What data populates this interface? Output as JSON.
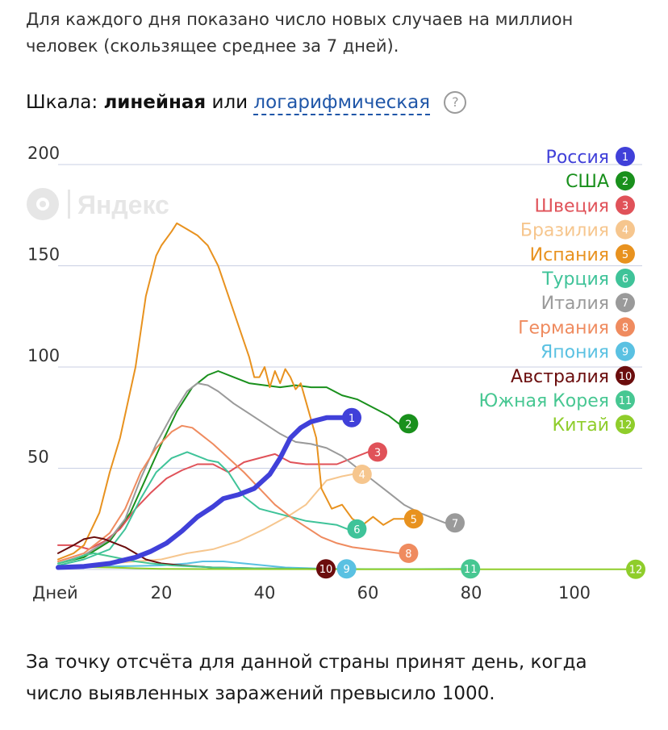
{
  "intro_text": "Для каждого дня показано число новых случаев на миллион человек (скользящее среднее за 7 дней).",
  "scale": {
    "label": "Шкала:",
    "linear": "линейная",
    "or": "или",
    "log": "логарифмическая",
    "help": "?"
  },
  "watermark": "Яндекс",
  "footer_text": "За точку отсчёта для данной страны принят день, когда число выявленных заражений превысило 1000.",
  "chart_data": {
    "type": "line",
    "xlabel": "Дней",
    "ylabel": "",
    "xlim": [
      0,
      113
    ],
    "ylim": [
      0,
      200
    ],
    "x_ticks": [
      20,
      40,
      60,
      80,
      100
    ],
    "y_ticks": [
      50,
      100,
      150,
      200
    ],
    "grid": true,
    "legend_position": "top-right",
    "series": [
      {
        "name": "Россия",
        "num": "1",
        "color": "#4040d9",
        "width": 6,
        "points": [
          [
            0,
            1
          ],
          [
            5,
            1.5
          ],
          [
            10,
            3
          ],
          [
            15,
            6
          ],
          [
            18,
            9
          ],
          [
            21,
            13
          ],
          [
            24,
            19
          ],
          [
            27,
            26
          ],
          [
            30,
            31
          ],
          [
            32,
            35
          ],
          [
            35,
            37
          ],
          [
            38,
            40
          ],
          [
            41,
            47
          ],
          [
            43,
            55
          ],
          [
            45,
            65
          ],
          [
            47,
            70
          ],
          [
            49,
            73
          ],
          [
            52,
            75
          ],
          [
            55,
            75
          ]
        ]
      },
      {
        "name": "США",
        "num": "2",
        "color": "#19901c",
        "width": 2,
        "points": [
          [
            0,
            3
          ],
          [
            5,
            6
          ],
          [
            10,
            14
          ],
          [
            14,
            28
          ],
          [
            17,
            45
          ],
          [
            20,
            62
          ],
          [
            23,
            78
          ],
          [
            26,
            90
          ],
          [
            29,
            96
          ],
          [
            31,
            98
          ],
          [
            34,
            95
          ],
          [
            37,
            92
          ],
          [
            40,
            91
          ],
          [
            43,
            90
          ],
          [
            46,
            91
          ],
          [
            49,
            90
          ],
          [
            52,
            90
          ],
          [
            55,
            86
          ],
          [
            58,
            84
          ],
          [
            61,
            80
          ],
          [
            64,
            76
          ],
          [
            66,
            72
          ]
        ]
      },
      {
        "name": "Швеция",
        "num": "3",
        "color": "#e05259",
        "width": 2,
        "points": [
          [
            0,
            12
          ],
          [
            3,
            12
          ],
          [
            6,
            10
          ],
          [
            9,
            14
          ],
          [
            12,
            20
          ],
          [
            15,
            30
          ],
          [
            18,
            38
          ],
          [
            21,
            45
          ],
          [
            24,
            49
          ],
          [
            27,
            52
          ],
          [
            30,
            52
          ],
          [
            33,
            48
          ],
          [
            36,
            53
          ],
          [
            39,
            55
          ],
          [
            42,
            57
          ],
          [
            45,
            53
          ],
          [
            48,
            52
          ],
          [
            51,
            52
          ],
          [
            54,
            52
          ],
          [
            57,
            55
          ],
          [
            60,
            58
          ]
        ]
      },
      {
        "name": "Бразилия",
        "num": "4",
        "color": "#f6c68e",
        "width": 2,
        "points": [
          [
            0,
            1
          ],
          [
            5,
            2
          ],
          [
            10,
            3
          ],
          [
            15,
            4
          ],
          [
            20,
            5
          ],
          [
            25,
            8
          ],
          [
            30,
            10
          ],
          [
            35,
            14
          ],
          [
            40,
            20
          ],
          [
            45,
            27
          ],
          [
            48,
            32
          ],
          [
            50,
            38
          ],
          [
            52,
            44
          ],
          [
            55,
            46
          ],
          [
            57,
            47
          ]
        ]
      },
      {
        "name": "Испания",
        "num": "5",
        "color": "#e8921f",
        "width": 2,
        "points": [
          [
            0,
            5
          ],
          [
            3,
            8
          ],
          [
            5,
            12
          ],
          [
            8,
            28
          ],
          [
            10,
            48
          ],
          [
            12,
            65
          ],
          [
            15,
            100
          ],
          [
            17,
            135
          ],
          [
            19,
            155
          ],
          [
            20,
            160
          ],
          [
            22,
            167
          ],
          [
            23,
            171
          ],
          [
            25,
            168
          ],
          [
            27,
            165
          ],
          [
            29,
            160
          ],
          [
            31,
            150
          ],
          [
            33,
            135
          ],
          [
            35,
            120
          ],
          [
            37,
            105
          ],
          [
            38,
            95
          ],
          [
            39,
            95
          ],
          [
            40,
            100
          ],
          [
            41,
            90
          ],
          [
            42,
            98
          ],
          [
            43,
            92
          ],
          [
            44,
            99
          ],
          [
            45,
            95
          ],
          [
            46,
            89
          ],
          [
            47,
            92
          ],
          [
            48,
            83
          ],
          [
            50,
            65
          ],
          [
            51,
            40
          ],
          [
            53,
            30
          ],
          [
            55,
            32
          ],
          [
            57,
            25
          ],
          [
            59,
            22
          ],
          [
            61,
            26
          ],
          [
            63,
            22
          ],
          [
            65,
            25
          ],
          [
            67,
            25
          ]
        ]
      },
      {
        "name": "Турция",
        "num": "6",
        "color": "#3fc399",
        "width": 2,
        "points": [
          [
            0,
            2
          ],
          [
            5,
            5
          ],
          [
            10,
            10
          ],
          [
            13,
            20
          ],
          [
            16,
            35
          ],
          [
            19,
            48
          ],
          [
            22,
            55
          ],
          [
            25,
            58
          ],
          [
            27,
            56
          ],
          [
            29,
            54
          ],
          [
            31,
            53
          ],
          [
            33,
            48
          ],
          [
            36,
            36
          ],
          [
            39,
            30
          ],
          [
            42,
            28
          ],
          [
            45,
            26
          ],
          [
            48,
            24
          ],
          [
            51,
            23
          ],
          [
            54,
            22
          ],
          [
            56,
            20
          ]
        ]
      },
      {
        "name": "Италия",
        "num": "7",
        "color": "#9a9a9a",
        "width": 2,
        "points": [
          [
            0,
            3
          ],
          [
            5,
            7
          ],
          [
            10,
            15
          ],
          [
            13,
            25
          ],
          [
            16,
            45
          ],
          [
            19,
            62
          ],
          [
            22,
            76
          ],
          [
            25,
            88
          ],
          [
            27,
            92
          ],
          [
            29,
            91
          ],
          [
            31,
            88
          ],
          [
            34,
            82
          ],
          [
            37,
            77
          ],
          [
            40,
            72
          ],
          [
            43,
            67
          ],
          [
            46,
            63
          ],
          [
            49,
            62
          ],
          [
            52,
            60
          ],
          [
            55,
            56
          ],
          [
            58,
            50
          ],
          [
            61,
            44
          ],
          [
            64,
            38
          ],
          [
            67,
            32
          ],
          [
            70,
            28
          ],
          [
            73,
            25
          ],
          [
            75,
            23
          ]
        ]
      },
      {
        "name": "Германия",
        "num": "8",
        "color": "#ef8b5f",
        "width": 2,
        "points": [
          [
            0,
            4
          ],
          [
            5,
            8
          ],
          [
            10,
            18
          ],
          [
            13,
            30
          ],
          [
            16,
            48
          ],
          [
            19,
            60
          ],
          [
            22,
            68
          ],
          [
            24,
            71
          ],
          [
            26,
            70
          ],
          [
            28,
            66
          ],
          [
            30,
            62
          ],
          [
            33,
            55
          ],
          [
            36,
            48
          ],
          [
            39,
            40
          ],
          [
            42,
            32
          ],
          [
            45,
            26
          ],
          [
            48,
            21
          ],
          [
            51,
            16
          ],
          [
            54,
            13
          ],
          [
            57,
            11
          ],
          [
            60,
            10
          ],
          [
            63,
            9
          ],
          [
            66,
            8
          ]
        ]
      },
      {
        "name": "Япония",
        "num": "9",
        "color": "#5ac1e2",
        "width": 2,
        "points": [
          [
            0,
            1
          ],
          [
            10,
            1.5
          ],
          [
            20,
            2
          ],
          [
            25,
            3
          ],
          [
            28,
            4
          ],
          [
            32,
            4
          ],
          [
            36,
            3
          ],
          [
            40,
            2
          ],
          [
            44,
            1
          ],
          [
            50,
            0.5
          ],
          [
            54,
            0.3
          ]
        ]
      },
      {
        "name": "Австралия",
        "num": "10",
        "color": "#6b0d0d",
        "width": 2,
        "points": [
          [
            0,
            8
          ],
          [
            3,
            12
          ],
          [
            5,
            15
          ],
          [
            7,
            16
          ],
          [
            9,
            15
          ],
          [
            11,
            13
          ],
          [
            13,
            11
          ],
          [
            15,
            8
          ],
          [
            17,
            5
          ],
          [
            20,
            3
          ],
          [
            24,
            2
          ],
          [
            30,
            1
          ],
          [
            40,
            0.5
          ],
          [
            50,
            0.3
          ]
        ]
      },
      {
        "name": "Южная Корея",
        "num": "11",
        "color": "#47c792",
        "width": 2,
        "points": [
          [
            0,
            3
          ],
          [
            3,
            5
          ],
          [
            5,
            7
          ],
          [
            7,
            8
          ],
          [
            9,
            7
          ],
          [
            11,
            6
          ],
          [
            13,
            5
          ],
          [
            15,
            4
          ],
          [
            18,
            3
          ],
          [
            22,
            2
          ],
          [
            30,
            1
          ],
          [
            40,
            0.5
          ],
          [
            50,
            0.3
          ],
          [
            60,
            0.2
          ],
          [
            70,
            0.2
          ],
          [
            78,
            0.3
          ]
        ]
      },
      {
        "name": "Китай",
        "num": "12",
        "color": "#8fcd2b",
        "width": 2,
        "points": [
          [
            0,
            1
          ],
          [
            5,
            1.2
          ],
          [
            10,
            1
          ],
          [
            15,
            0.6
          ],
          [
            20,
            0.3
          ],
          [
            30,
            0.2
          ],
          [
            50,
            0.1
          ],
          [
            80,
            0.1
          ],
          [
            100,
            0.1
          ],
          [
            110,
            0.1
          ]
        ]
      }
    ]
  }
}
